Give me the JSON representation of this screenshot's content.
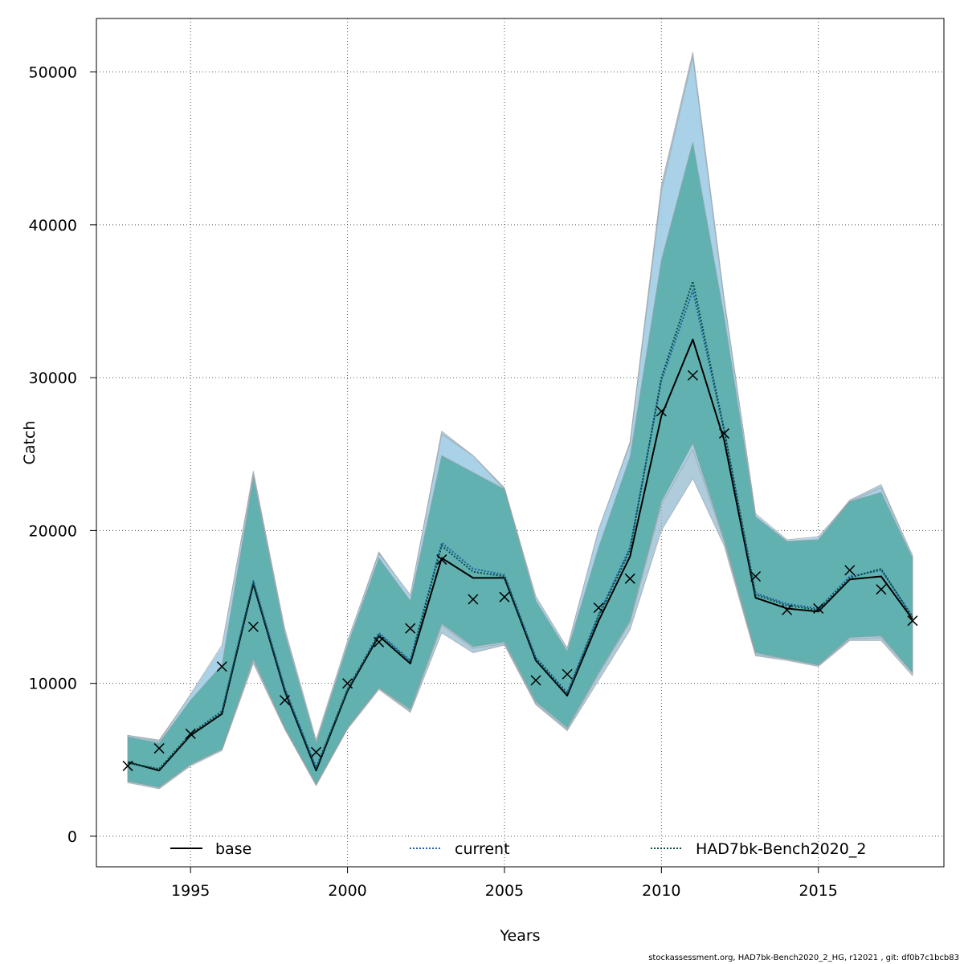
{
  "footer": "stockassessment.org, HAD7bk-Bench2020_2_HG, r12021 , git: df0b7c1bcb83",
  "chart_data": {
    "type": "line",
    "xlabel": "Years",
    "ylabel": "Catch",
    "xlim": [
      1992,
      2019
    ],
    "ylim": [
      -2000,
      53500
    ],
    "x_ticks": [
      1995,
      2000,
      2005,
      2010,
      2015
    ],
    "y_ticks": [
      0,
      10000,
      20000,
      30000,
      40000,
      50000
    ],
    "grid": true,
    "legend_position": "bottom",
    "x": [
      1993,
      1994,
      1995,
      1996,
      1997,
      1998,
      1999,
      2000,
      2001,
      2002,
      2003,
      2004,
      2005,
      2006,
      2007,
      2008,
      2009,
      2010,
      2011,
      2012,
      2013,
      2014,
      2015,
      2016,
      2017,
      2018
    ],
    "observed": {
      "marker": "x",
      "values": [
        4600,
        5750,
        6700,
        11100,
        13700,
        8900,
        5500,
        10000,
        12700,
        13600,
        18100,
        15500,
        15650,
        10200,
        10600,
        14950,
        16850,
        27800,
        30150,
        26350,
        17000,
        14800,
        14900,
        17400,
        16150,
        14100
      ]
    },
    "series": [
      {
        "name": "base",
        "line_style": "solid",
        "color": "#000000",
        "band_color": "#8fb8cf",
        "values": [
          4850,
          4300,
          6600,
          8000,
          16500,
          9500,
          4300,
          9500,
          13100,
          11300,
          18200,
          16900,
          16900,
          11500,
          9200,
          14100,
          18300,
          27500,
          32500,
          25900,
          15600,
          14900,
          14700,
          16800,
          17000,
          14200
        ],
        "lower": [
          3500,
          3100,
          4600,
          5600,
          11300,
          7000,
          3300,
          7000,
          9600,
          8100,
          13300,
          12000,
          12500,
          8600,
          6900,
          10200,
          13500,
          20000,
          23400,
          19000,
          11800,
          11500,
          11100,
          12800,
          12800,
          10500
        ],
        "upper": [
          6600,
          6300,
          9200,
          12300,
          23900,
          13500,
          6200,
          12700,
          18600,
          15700,
          26500,
          24900,
          22800,
          15600,
          12300,
          20000,
          25800,
          42600,
          51300,
          35200,
          21000,
          19300,
          19500,
          22000,
          23000,
          18300
        ]
      },
      {
        "name": "current",
        "line_style": "dotted",
        "color": "#1a5fa8",
        "band_color": "#a7d3ec",
        "values": [
          4800,
          4400,
          6700,
          8200,
          16700,
          9700,
          4500,
          9600,
          13300,
          11500,
          19200,
          17500,
          17100,
          11700,
          9400,
          14500,
          18900,
          29800,
          35700,
          26500,
          15900,
          15200,
          14900,
          17000,
          17400,
          14400
        ],
        "lower": [
          3600,
          3200,
          4700,
          5700,
          11500,
          7100,
          3400,
          7100,
          9700,
          8200,
          13800,
          12300,
          12600,
          8700,
          7000,
          10600,
          14000,
          21700,
          25300,
          19300,
          11900,
          11600,
          11200,
          12900,
          13000,
          10700
        ],
        "upper": [
          6600,
          6200,
          9300,
          12500,
          23700,
          13600,
          6300,
          12800,
          18500,
          15800,
          26300,
          24900,
          22700,
          15700,
          12300,
          20100,
          25700,
          42200,
          51000,
          35000,
          21100,
          19400,
          19600,
          21900,
          22800,
          18400
        ]
      },
      {
        "name": "HAD7bk-Bench2020_2",
        "line_style": "dotted",
        "color": "#0b4a44",
        "band_color": "#4ea8a2",
        "values": [
          4800,
          4400,
          6700,
          8100,
          16600,
          9600,
          4400,
          9600,
          13200,
          11400,
          19000,
          17300,
          17000,
          11600,
          9300,
          14400,
          18700,
          30000,
          36300,
          26600,
          15800,
          15100,
          14800,
          16900,
          17500,
          14300
        ],
        "lower": [
          3600,
          3200,
          4700,
          5700,
          11600,
          7100,
          3400,
          7100,
          9700,
          8300,
          13900,
          12400,
          12700,
          8800,
          7100,
          10700,
          14100,
          21900,
          25700,
          19400,
          12000,
          11600,
          11200,
          13000,
          13100,
          10700
        ],
        "upper": [
          6500,
          6100,
          8900,
          11200,
          23500,
          13300,
          6100,
          12500,
          18200,
          15400,
          24900,
          23800,
          22700,
          15400,
          12100,
          18900,
          24800,
          37700,
          45400,
          34000,
          20900,
          19300,
          19400,
          21900,
          22500,
          18200
        ]
      }
    ]
  }
}
